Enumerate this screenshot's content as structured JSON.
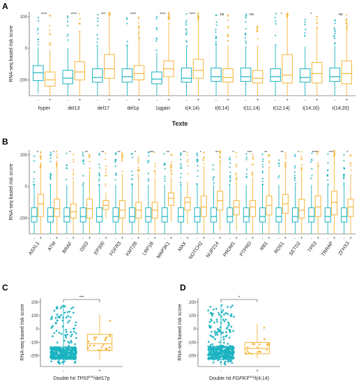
{
  "colors": {
    "teal": "#1ab3c0",
    "orange": "#f5b436"
  },
  "panel_title": "Texte",
  "chart_data": [
    {
      "panel": "A",
      "type": "boxplot",
      "ylabel": "RNA-seq based risk score",
      "ylim": [
        -300,
        230
      ],
      "yticks": [
        -200,
        0,
        200
      ],
      "group_labels": [
        "-",
        "+"
      ],
      "categories": [
        "hyper",
        "del13",
        "del17",
        "del1p",
        "1qgain",
        "t(4;14)",
        "t(6;14)",
        "t(11;14)",
        "t(12;14)",
        "t(14;16)",
        "t(14;20)"
      ],
      "significance": [
        "****",
        "****",
        "***",
        "****",
        "****",
        "****",
        "ns",
        "ns",
        "*",
        "*",
        "ns"
      ],
      "series": [
        {
          "group": "-",
          "color": "#1ab3c0",
          "boxes": [
            {
              "q1": -205,
              "med": -155,
              "q3": -110,
              "wlo": -285,
              "whi": 5
            },
            {
              "q1": -225,
              "med": -190,
              "q3": -140,
              "wlo": -300,
              "whi": 0
            },
            {
              "q1": -215,
              "med": -185,
              "q3": -130,
              "wlo": -300,
              "whi": 10
            },
            {
              "q1": -215,
              "med": -180,
              "q3": -130,
              "wlo": -300,
              "whi": 10
            },
            {
              "q1": -225,
              "med": -195,
              "q3": -150,
              "wlo": -300,
              "whi": -30
            },
            {
              "q1": -215,
              "med": -190,
              "q3": -125,
              "wlo": -300,
              "whi": 10
            },
            {
              "q1": -210,
              "med": -180,
              "q3": -125,
              "wlo": -300,
              "whi": 20
            },
            {
              "q1": -210,
              "med": -180,
              "q3": -125,
              "wlo": -300,
              "whi": 15
            },
            {
              "q1": -210,
              "med": -180,
              "q3": -130,
              "wlo": -300,
              "whi": 20
            },
            {
              "q1": -215,
              "med": -185,
              "q3": -130,
              "wlo": -300,
              "whi": 10
            },
            {
              "q1": -210,
              "med": -180,
              "q3": -125,
              "wlo": -300,
              "whi": 15
            }
          ]
        },
        {
          "group": "+",
          "color": "#f5b436",
          "boxes": [
            {
              "q1": -240,
              "med": -200,
              "q3": -150,
              "wlo": -300,
              "whi": -10
            },
            {
              "q1": -200,
              "med": -150,
              "q3": -85,
              "wlo": -300,
              "whi": 100
            },
            {
              "q1": -190,
              "med": -130,
              "q3": -40,
              "wlo": -300,
              "whi": 210
            },
            {
              "q1": -200,
              "med": -160,
              "q3": -110,
              "wlo": -300,
              "whi": 60
            },
            {
              "q1": -180,
              "med": -130,
              "q3": -80,
              "wlo": -300,
              "whi": 150
            },
            {
              "q1": -190,
              "med": -140,
              "q3": -70,
              "wlo": -300,
              "whi": 180
            },
            {
              "q1": -215,
              "med": -185,
              "q3": -130,
              "wlo": -300,
              "whi": 20
            },
            {
              "q1": -220,
              "med": -190,
              "q3": -140,
              "wlo": -300,
              "whi": 10
            },
            {
              "q1": -220,
              "med": -170,
              "q3": -40,
              "wlo": -300,
              "whi": 200
            },
            {
              "q1": -220,
              "med": -160,
              "q3": -90,
              "wlo": -300,
              "whi": 110
            },
            {
              "q1": -225,
              "med": -160,
              "q3": -80,
              "wlo": -300,
              "whi": 120
            }
          ]
        }
      ]
    },
    {
      "panel": "B",
      "type": "boxplot",
      "ylabel": "RNA-seq based risk score",
      "ylim": [
        -300,
        230
      ],
      "yticks": [
        -200,
        0,
        200
      ],
      "group_labels": [
        "-",
        "+"
      ],
      "categories": [
        "ASXL1",
        "ATM",
        "BRAF",
        "DIS3",
        "EP300",
        "FGFR3",
        "KMT2B",
        "LRP1B",
        "MAP3K1",
        "MAX",
        "NOTCH2",
        "NUP214",
        "PRDM1",
        "PTPRD",
        "RB1",
        "ROS1",
        "SETD2",
        "TP53",
        "TRRAP",
        "ZFHX3"
      ],
      "significance": [
        "*",
        "*",
        "*",
        "**",
        "**",
        "**",
        "*",
        "***",
        "**",
        "**",
        "*",
        "**",
        "*",
        "***",
        "**",
        "**",
        "*",
        "****",
        "***",
        "*"
      ],
      "series": [
        {
          "group": "-",
          "color": "#1ab3c0",
          "boxes": [
            {
              "q1": -225,
              "med": -190,
              "q3": -135,
              "wlo": -300,
              "whi": 10
            },
            {
              "q1": -225,
              "med": -190,
              "q3": -135,
              "wlo": -300,
              "whi": 10
            },
            {
              "q1": -225,
              "med": -190,
              "q3": -135,
              "wlo": -300,
              "whi": 10
            },
            {
              "q1": -225,
              "med": -190,
              "q3": -135,
              "wlo": -300,
              "whi": 10
            },
            {
              "q1": -225,
              "med": -190,
              "q3": -135,
              "wlo": -300,
              "whi": 10
            },
            {
              "q1": -225,
              "med": -190,
              "q3": -135,
              "wlo": -300,
              "whi": 10
            },
            {
              "q1": -225,
              "med": -190,
              "q3": -135,
              "wlo": -300,
              "whi": 10
            },
            {
              "q1": -225,
              "med": -190,
              "q3": -135,
              "wlo": -300,
              "whi": 10
            },
            {
              "q1": -225,
              "med": -190,
              "q3": -135,
              "wlo": -300,
              "whi": 10
            },
            {
              "q1": -225,
              "med": -190,
              "q3": -135,
              "wlo": -300,
              "whi": 10
            },
            {
              "q1": -225,
              "med": -190,
              "q3": -135,
              "wlo": -300,
              "whi": 10
            },
            {
              "q1": -225,
              "med": -190,
              "q3": -135,
              "wlo": -300,
              "whi": 10
            },
            {
              "q1": -225,
              "med": -190,
              "q3": -135,
              "wlo": -300,
              "whi": 10
            },
            {
              "q1": -225,
              "med": -190,
              "q3": -135,
              "wlo": -300,
              "whi": 10
            },
            {
              "q1": -225,
              "med": -190,
              "q3": -135,
              "wlo": -300,
              "whi": 10
            },
            {
              "q1": -225,
              "med": -190,
              "q3": -135,
              "wlo": -300,
              "whi": 10
            },
            {
              "q1": -225,
              "med": -190,
              "q3": -135,
              "wlo": -300,
              "whi": 10
            },
            {
              "q1": -225,
              "med": -190,
              "q3": -135,
              "wlo": -300,
              "whi": 10
            },
            {
              "q1": -225,
              "med": -190,
              "q3": -135,
              "wlo": -300,
              "whi": 10
            },
            {
              "q1": -225,
              "med": -190,
              "q3": -135,
              "wlo": -300,
              "whi": 10
            }
          ]
        },
        {
          "group": "+",
          "color": "#f5b436",
          "boxes": [
            {
              "q1": -190,
              "med": -110,
              "q3": -50,
              "wlo": -300,
              "whi": 120
            },
            {
              "q1": -190,
              "med": -140,
              "q3": -80,
              "wlo": -300,
              "whi": 100
            },
            {
              "q1": -200,
              "med": -160,
              "q3": -110,
              "wlo": -300,
              "whi": 40
            },
            {
              "q1": -200,
              "med": -140,
              "q3": -80,
              "wlo": -300,
              "whi": 100
            },
            {
              "q1": -145,
              "med": -120,
              "q3": -90,
              "wlo": -200,
              "whi": -40
            },
            {
              "q1": -200,
              "med": -150,
              "q3": -90,
              "wlo": -300,
              "whi": 80
            },
            {
              "q1": -200,
              "med": -150,
              "q3": -100,
              "wlo": -300,
              "whi": 60
            },
            {
              "q1": -200,
              "med": -150,
              "q3": -100,
              "wlo": -300,
              "whi": 60
            },
            {
              "q1": -120,
              "med": -75,
              "q3": -40,
              "wlo": -220,
              "whi": 60
            },
            {
              "q1": -150,
              "med": -100,
              "q3": -70,
              "wlo": -240,
              "whi": 30
            },
            {
              "q1": -190,
              "med": -130,
              "q3": -60,
              "wlo": -300,
              "whi": 130
            },
            {
              "q1": -150,
              "med": -90,
              "q3": -30,
              "wlo": -280,
              "whi": 140
            },
            {
              "q1": -180,
              "med": -130,
              "q3": -90,
              "wlo": -280,
              "whi": 20
            },
            {
              "q1": -190,
              "med": -130,
              "q3": -90,
              "wlo": -300,
              "whi": 60
            },
            {
              "q1": -180,
              "med": -120,
              "q3": -60,
              "wlo": -300,
              "whi": 110
            },
            {
              "q1": -170,
              "med": -110,
              "q3": -50,
              "wlo": -300,
              "whi": 120
            },
            {
              "q1": -200,
              "med": -150,
              "q3": -80,
              "wlo": -300,
              "whi": 100
            },
            {
              "q1": -190,
              "med": -130,
              "q3": -60,
              "wlo": -300,
              "whi": 130
            },
            {
              "q1": -180,
              "med": -100,
              "q3": -30,
              "wlo": -300,
              "whi": 190
            },
            {
              "q1": -190,
              "med": -130,
              "q3": -80,
              "wlo": -300,
              "whi": 80
            }
          ]
        }
      ]
    },
    {
      "panel": "C",
      "type": "boxplot",
      "ylabel": "RNA-seq based risk score",
      "ylim": [
        -280,
        230
      ],
      "yticks": [
        -200,
        -100,
        0,
        100,
        200
      ],
      "group_labels": [
        "-",
        "+"
      ],
      "xlabel_prefix": "Double hit ",
      "xlabel_gene": "TP53",
      "xlabel_sup": "mut",
      "xlabel_suffix": "/del17p",
      "significance": "***",
      "series": [
        {
          "group": "-",
          "color": "#1ab3c0",
          "box": {
            "q1": -225,
            "med": -190,
            "q3": -135,
            "wlo": -270,
            "whi": 180
          },
          "n_points": 380
        },
        {
          "group": "+",
          "color": "#f5b436",
          "box": {
            "q1": -160,
            "med": -110,
            "q3": -40,
            "wlo": -230,
            "whi": 110
          },
          "n_points": 22
        }
      ]
    },
    {
      "panel": "D",
      "type": "boxplot",
      "ylabel": "RNA-seq based risk score",
      "ylim": [
        -280,
        230
      ],
      "yticks": [
        -200,
        -100,
        0,
        100,
        200
      ],
      "group_labels": [
        "-",
        "+"
      ],
      "xlabel_prefix": "Double hit ",
      "xlabel_gene": "FGFR3",
      "xlabel_sup": "mut",
      "xlabel_suffix": "/t(4;14)",
      "significance": "*",
      "series": [
        {
          "group": "-",
          "color": "#1ab3c0",
          "box": {
            "q1": -225,
            "med": -185,
            "q3": -130,
            "wlo": -270,
            "whi": 180
          },
          "n_points": 380
        },
        {
          "group": "+",
          "color": "#f5b436",
          "box": {
            "q1": -185,
            "med": -145,
            "q3": -100,
            "wlo": -220,
            "whi": 40
          },
          "n_points": 18
        }
      ]
    }
  ]
}
